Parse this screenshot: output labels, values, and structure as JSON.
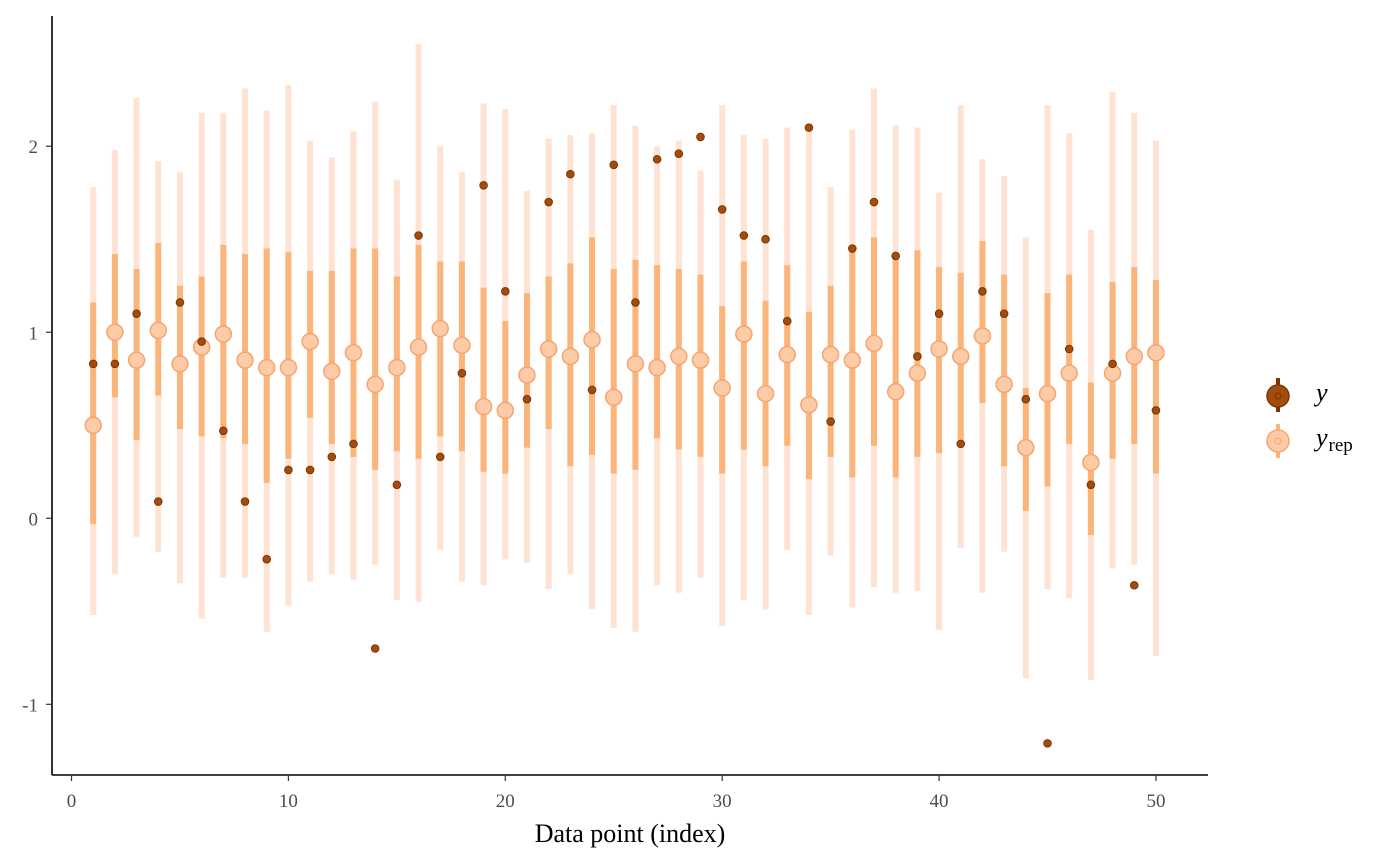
{
  "chart_data": {
    "type": "scatter",
    "xlabel": "Data point (index)",
    "ylabel": "",
    "xlim": [
      -0.9,
      52.4
    ],
    "ylim": [
      -1.38,
      2.7
    ],
    "xticks": [
      0,
      10,
      20,
      30,
      40,
      50
    ],
    "yticks": [
      -1,
      0,
      1,
      2
    ],
    "grid": false,
    "legend_position": "right",
    "colors": {
      "y": "#a34c0c",
      "y_edge": "#7a3506",
      "yrep_point": "#fdcba6",
      "yrep_edge": "#f4a571",
      "inner_interval": "#fbb47a",
      "outer_interval": "#fee3d3"
    },
    "legend": [
      {
        "key": "y",
        "label": "y",
        "sub": ""
      },
      {
        "key": "yrep",
        "label": "y",
        "sub": "rep"
      }
    ],
    "series": [
      {
        "name": "y",
        "x": [
          1,
          2,
          3,
          4,
          5,
          6,
          7,
          8,
          9,
          10,
          11,
          12,
          13,
          14,
          15,
          16,
          17,
          18,
          19,
          20,
          21,
          22,
          23,
          24,
          25,
          26,
          27,
          28,
          29,
          30,
          31,
          32,
          33,
          34,
          35,
          36,
          37,
          38,
          39,
          40,
          41,
          42,
          43,
          44,
          45,
          46,
          47,
          48,
          49,
          50
        ],
        "values": [
          0.83,
          0.83,
          1.1,
          0.09,
          1.16,
          0.95,
          0.47,
          0.09,
          -0.22,
          0.26,
          0.26,
          0.33,
          0.4,
          -0.7,
          0.18,
          1.52,
          0.33,
          0.78,
          1.79,
          1.22,
          0.64,
          1.7,
          1.85,
          0.69,
          1.9,
          1.16,
          1.93,
          1.96,
          2.05,
          1.66,
          1.52,
          1.5,
          1.06,
          2.1,
          0.52,
          1.45,
          1.7,
          1.41,
          0.87,
          1.1,
          0.4,
          1.22,
          1.1,
          0.64,
          -1.21,
          0.91,
          0.18,
          0.83,
          -0.36,
          0.58
        ]
      },
      {
        "name": "y_rep",
        "x": [
          1,
          2,
          3,
          4,
          5,
          6,
          7,
          8,
          9,
          10,
          11,
          12,
          13,
          14,
          15,
          16,
          17,
          18,
          19,
          20,
          21,
          22,
          23,
          24,
          25,
          26,
          27,
          28,
          29,
          30,
          31,
          32,
          33,
          34,
          35,
          36,
          37,
          38,
          39,
          40,
          41,
          42,
          43,
          44,
          45,
          46,
          47,
          48,
          49,
          50
        ],
        "median": [
          0.5,
          1.0,
          0.85,
          1.01,
          0.83,
          0.92,
          0.99,
          0.85,
          0.81,
          0.81,
          0.95,
          0.79,
          0.89,
          0.72,
          0.81,
          0.92,
          1.02,
          0.93,
          0.6,
          0.58,
          0.77,
          0.91,
          0.87,
          0.96,
          0.65,
          0.83,
          0.81,
          0.87,
          0.85,
          0.7,
          0.99,
          0.67,
          0.88,
          0.61,
          0.88,
          0.85,
          0.94,
          0.68,
          0.78,
          0.91,
          0.87,
          0.98,
          0.72,
          0.38,
          0.67,
          0.78,
          0.3,
          0.78,
          0.87,
          0.89
        ],
        "inner_low": [
          -0.03,
          0.65,
          0.42,
          0.66,
          0.48,
          0.44,
          0.43,
          0.4,
          0.19,
          0.32,
          0.54,
          0.4,
          0.33,
          0.26,
          0.36,
          0.32,
          0.44,
          0.36,
          0.25,
          0.24,
          0.38,
          0.48,
          0.28,
          0.34,
          0.24,
          0.26,
          0.43,
          0.37,
          0.33,
          0.24,
          0.37,
          0.28,
          0.39,
          0.21,
          0.33,
          0.22,
          0.39,
          0.22,
          0.33,
          0.35,
          0.41,
          0.62,
          0.28,
          0.04,
          0.17,
          0.4,
          -0.09,
          0.32,
          0.4,
          0.24
        ],
        "inner_high": [
          1.16,
          1.42,
          1.34,
          1.48,
          1.25,
          1.3,
          1.47,
          1.42,
          1.45,
          1.43,
          1.33,
          1.33,
          1.45,
          1.45,
          1.3,
          1.47,
          1.38,
          1.38,
          1.24,
          1.06,
          1.21,
          1.3,
          1.37,
          1.51,
          1.34,
          1.39,
          1.36,
          1.34,
          1.31,
          1.14,
          1.38,
          1.17,
          1.36,
          1.11,
          1.25,
          1.43,
          1.51,
          1.41,
          1.44,
          1.35,
          1.32,
          1.49,
          1.31,
          0.7,
          1.21,
          1.31,
          0.73,
          1.27,
          1.35,
          1.28
        ],
        "outer_low": [
          -0.52,
          -0.3,
          -0.1,
          -0.18,
          -0.35,
          -0.54,
          -0.32,
          -0.32,
          -0.61,
          -0.47,
          -0.34,
          -0.3,
          -0.33,
          -0.25,
          -0.44,
          -0.45,
          -0.17,
          -0.34,
          -0.36,
          -0.22,
          -0.24,
          -0.38,
          -0.3,
          -0.49,
          -0.59,
          -0.61,
          -0.36,
          -0.4,
          -0.32,
          -0.58,
          -0.44,
          -0.49,
          -0.17,
          -0.52,
          -0.2,
          -0.48,
          -0.37,
          -0.4,
          -0.39,
          -0.6,
          -0.16,
          -0.4,
          -0.18,
          -0.86,
          -0.38,
          -0.43,
          -0.87,
          -0.27,
          -0.25,
          -0.74
        ],
        "outer_high": [
          1.78,
          1.98,
          2.26,
          1.92,
          1.86,
          2.18,
          2.18,
          2.31,
          2.19,
          2.33,
          2.03,
          1.94,
          2.08,
          2.24,
          1.82,
          2.55,
          2.0,
          1.86,
          2.23,
          2.2,
          1.76,
          2.04,
          2.06,
          2.07,
          2.22,
          2.11,
          2.0,
          2.03,
          1.87,
          2.22,
          2.06,
          2.04,
          2.1,
          2.09,
          1.78,
          2.09,
          2.31,
          2.11,
          2.1,
          1.75,
          2.22,
          1.93,
          1.84,
          1.51,
          2.22,
          2.07,
          1.55,
          2.29,
          2.18,
          2.03
        ]
      }
    ]
  }
}
